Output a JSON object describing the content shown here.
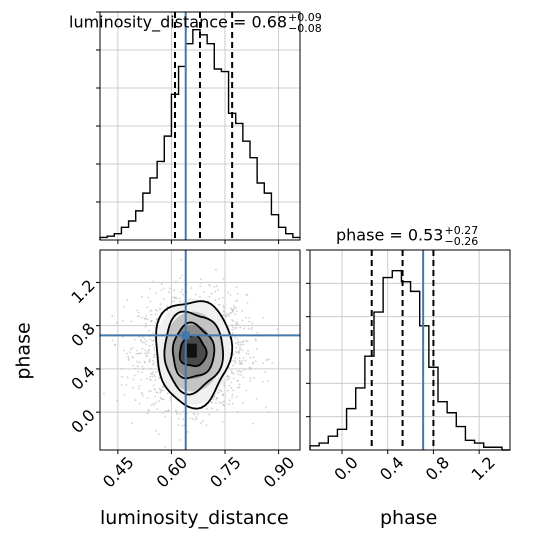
{
  "chart_data": {
    "type": "corner",
    "params": [
      {
        "name": "luminosity_distance",
        "title_label": "luminosity_distance = 0.68",
        "err_plus": "+0.09",
        "err_minus": "−0.08",
        "median": 0.68,
        "q_lo": 0.61,
        "q_hi": 0.77,
        "truth": 0.64,
        "xlim": [
          0.4,
          0.96
        ],
        "ticks": [
          0.45,
          0.6,
          0.75,
          0.9
        ],
        "tick_labels": [
          "0.45",
          "0.60",
          "0.75",
          "0.90"
        ],
        "axis_label": "luminosity_distance",
        "hist": {
          "bin_edges": [
            0.4,
            0.42,
            0.44,
            0.46,
            0.48,
            0.5,
            0.52,
            0.54,
            0.56,
            0.58,
            0.6,
            0.62,
            0.64,
            0.66,
            0.68,
            0.7,
            0.72,
            0.74,
            0.76,
            0.78,
            0.8,
            0.82,
            0.84,
            0.86,
            0.88,
            0.9,
            0.92,
            0.94,
            0.96
          ],
          "counts": [
            2,
            3,
            5,
            10,
            15,
            23,
            37,
            49,
            62,
            82,
            115,
            137,
            155,
            166,
            162,
            155,
            135,
            133,
            100,
            92,
            78,
            65,
            45,
            37,
            20,
            10,
            5,
            2
          ],
          "ymax": 180
        }
      },
      {
        "name": "phase",
        "title_label": "phase = 0.53",
        "err_plus": "+0.27",
        "err_minus": "−0.26",
        "median": 0.53,
        "q_lo": 0.26,
        "q_hi": 0.8,
        "truth": 0.71,
        "xlim": [
          -0.28,
          1.47
        ],
        "ticks": [
          0.0,
          0.4,
          0.8,
          1.2
        ],
        "tick_labels": [
          "0.0",
          "0.4",
          "0.8",
          "1.2"
        ],
        "axis_label": "phase",
        "hist": {
          "bin_edges": [
            -0.28,
            -0.2,
            -0.12,
            -0.04,
            0.04,
            0.12,
            0.2,
            0.28,
            0.36,
            0.44,
            0.52,
            0.6,
            0.68,
            0.76,
            0.84,
            0.92,
            1.0,
            1.08,
            1.16,
            1.24,
            1.32,
            1.4,
            1.47
          ],
          "counts": [
            3,
            5,
            10,
            15,
            30,
            45,
            68,
            100,
            125,
            130,
            122,
            115,
            90,
            60,
            35,
            27,
            17,
            7,
            5,
            2,
            2,
            0
          ],
          "ymax": 145
        }
      }
    ],
    "joint": {
      "x_param": "luminosity_distance",
      "y_param": "phase",
      "ylim": [
        -0.35,
        1.5
      ],
      "yticks": [
        0.0,
        0.4,
        0.8,
        1.2
      ],
      "ytick_labels": [
        "0.0",
        "0.4",
        "0.8",
        "1.2"
      ],
      "center": [
        0.66,
        0.56
      ],
      "contours": [
        {
          "level": "1",
          "rx": 0.037,
          "ry": 0.14
        },
        {
          "level": "2",
          "rx": 0.058,
          "ry": 0.25
        },
        {
          "level": "3",
          "rx": 0.082,
          "ry": 0.37
        },
        {
          "level": "4",
          "rx": 0.105,
          "ry": 0.49
        }
      ]
    },
    "grid": true,
    "line_colors": {
      "hist": "#000000",
      "quantile": "#000000",
      "truth": "#4477aa",
      "scatter": "#bdbdbd",
      "grid": "#cccccc"
    }
  }
}
